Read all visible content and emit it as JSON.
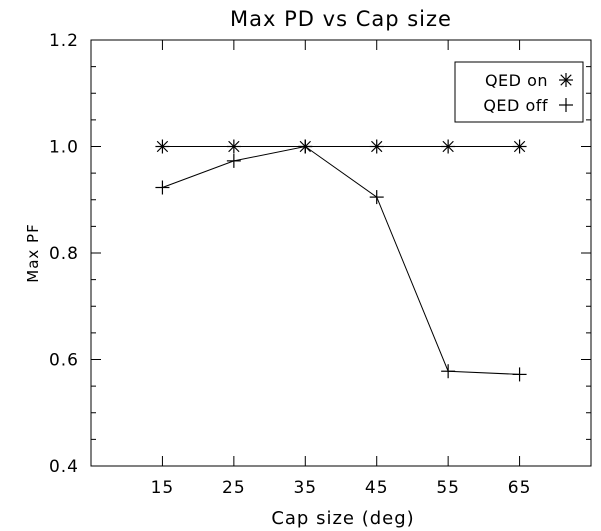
{
  "chart_data": {
    "type": "line",
    "title": "Max PD vs Cap size",
    "xlabel": "Cap size (deg)",
    "ylabel": "Max PF",
    "x": [
      15,
      25,
      35,
      45,
      55,
      65
    ],
    "xlim": [
      5,
      75
    ],
    "ylim": [
      0.4,
      1.2
    ],
    "xticks": [
      15,
      25,
      35,
      45,
      55,
      65
    ],
    "yticks": [
      0.4,
      0.6,
      0.8,
      1.0,
      1.2
    ],
    "ytick_labels": [
      "0.4",
      "0.6",
      "0.8",
      "1.0",
      "1.2"
    ],
    "grid": false,
    "legend_position": "top-right",
    "series": [
      {
        "name": "QED on",
        "marker": "asterisk",
        "values": [
          1.0,
          1.0,
          1.0,
          1.0,
          1.0,
          1.0
        ]
      },
      {
        "name": "QED off",
        "marker": "plus",
        "values": [
          0.923,
          0.973,
          1.0,
          0.905,
          0.578,
          0.572
        ]
      }
    ],
    "colors": {
      "line": "#000000",
      "background": "#ffffff"
    }
  }
}
